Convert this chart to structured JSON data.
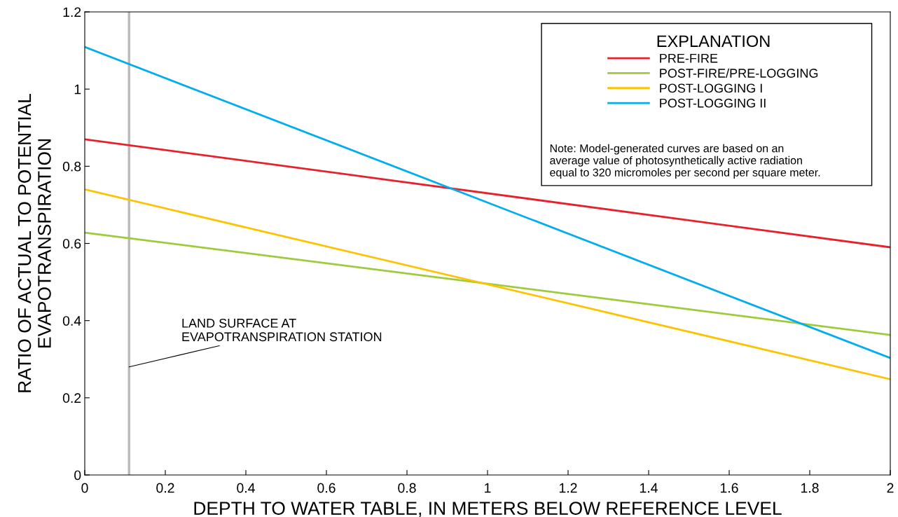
{
  "chart_data": {
    "type": "line",
    "xlabel": "DEPTH TO WATER TABLE, IN METERS BELOW REFERENCE LEVEL",
    "ylabel": "RATIO OF ACTUAL TO POTENTIAL\nEVAPOTRANSPIRATION",
    "legend_title": "EXPLANATION",
    "legend": "top right",
    "grid": false,
    "x": [
      0,
      2
    ],
    "series": [
      {
        "name": "PRE-FIRE",
        "color": "#e8202a",
        "values": [
          0.87,
          0.59
        ]
      },
      {
        "name": "POST-FIRE/PRE-LOGGING",
        "color": "#9dcb3c",
        "values": [
          0.628,
          0.363
        ]
      },
      {
        "name": "POST-LOGGING I",
        "color": "#fdc300",
        "values": [
          0.74,
          0.248
        ]
      },
      {
        "name": "POST-LOGGING II",
        "color": "#00aeef",
        "values": [
          1.109,
          0.303
        ]
      }
    ],
    "xlim": [
      0,
      2
    ],
    "xticks": [
      0,
      0.2,
      0.4,
      0.6,
      0.8,
      1,
      1.2,
      1.4,
      1.6,
      1.8,
      2
    ],
    "ylim": [
      0,
      1.2
    ],
    "yticks": [
      0,
      0.2,
      0.4,
      0.6,
      0.8,
      1,
      1.2
    ],
    "ref_lines": [
      {
        "axis": "x",
        "value": 0.11,
        "label": "LAND SURFACE AT\nEVAPOTRANSPIRATION STATION",
        "color": "#bbbbbb"
      }
    ],
    "annotations": [
      "Note: Model-generated curves are based on an\naverage value of photosynthetically active radiation\nequal to 320 micromoles per second per square meter."
    ]
  }
}
